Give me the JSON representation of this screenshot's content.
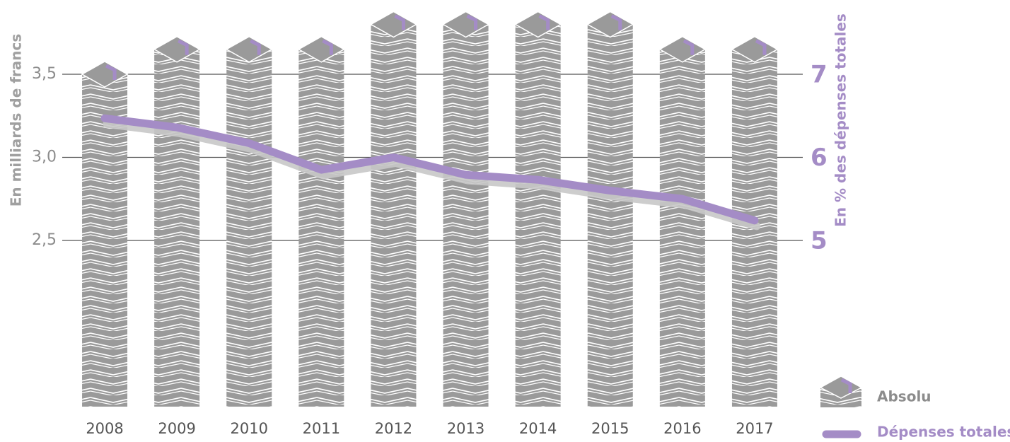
{
  "chart_data": {
    "type": "bar",
    "categories": [
      "2008",
      "2009",
      "2010",
      "2011",
      "2012",
      "2013",
      "2014",
      "2015",
      "2016",
      "2017"
    ],
    "series": [
      {
        "name": "Absolu",
        "type": "bar",
        "color": "#9a9a9a",
        "values": [
          3.5,
          3.65,
          3.65,
          3.65,
          3.8,
          3.8,
          3.8,
          3.8,
          3.65,
          3.65
        ]
      },
      {
        "name": "Dépenses totales",
        "type": "line",
        "axis": "y2",
        "color": "#a48cc6",
        "values": [
          6.47,
          6.36,
          6.17,
          5.85,
          6.0,
          5.79,
          5.73,
          5.6,
          5.5,
          5.24
        ]
      }
    ],
    "ylabel": "En milliards de francs",
    "y2label": "En % des dépenses totales",
    "ylim": [
      1.5,
      3.9
    ],
    "yticks": [
      {
        "value": 2.5,
        "label": "2,5"
      },
      {
        "value": 3.0,
        "label": "3,0"
      },
      {
        "value": 3.5,
        "label": "3,5"
      }
    ],
    "y2lim": [
      3,
      7.8
    ],
    "y2ticks": [
      5,
      6,
      7
    ],
    "grid": true
  }
}
